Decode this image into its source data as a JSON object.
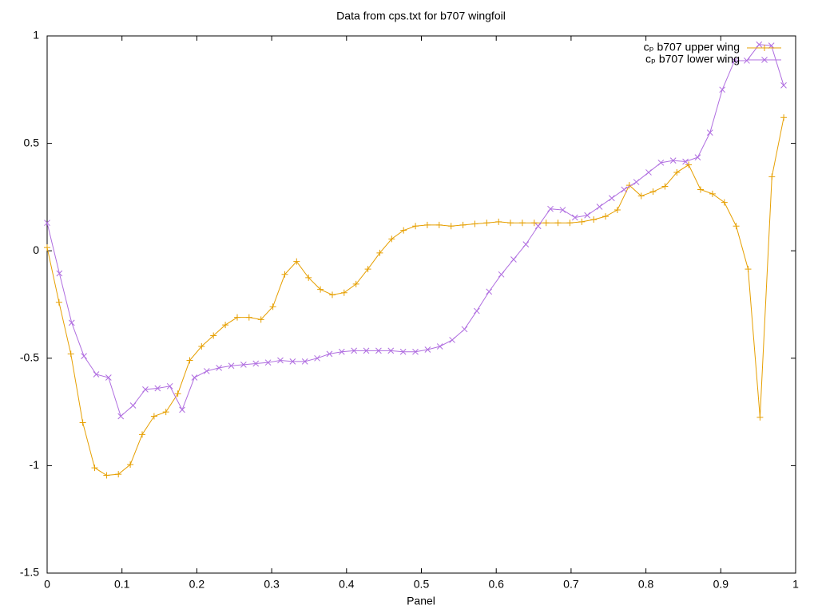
{
  "chart_data": {
    "type": "line",
    "title": "Data from cps.txt for b707 wingfoil",
    "x_label": "Panel",
    "xlim": [
      0,
      1
    ],
    "ylim": [
      -1.5,
      1
    ],
    "xticks": [
      0,
      0.1,
      0.2,
      0.3,
      0.4,
      0.5,
      0.6,
      0.7,
      0.8,
      0.9,
      1
    ],
    "yticks": [
      -1.5,
      -1,
      -0.5,
      0,
      0.5,
      1
    ],
    "legend": "top-right",
    "series": [
      {
        "name": "cₚ b707 upper wing",
        "color": "#e69f00",
        "marker": "plus",
        "x": [
          0,
          0.0159,
          0.0317,
          0.0476,
          0.0635,
          0.0794,
          0.0952,
          0.1111,
          0.127,
          0.1429,
          0.1587,
          0.1746,
          0.1905,
          0.2063,
          0.2222,
          0.2381,
          0.254,
          0.2698,
          0.2857,
          0.3016,
          0.3175,
          0.3333,
          0.3492,
          0.3651,
          0.381,
          0.3968,
          0.4127,
          0.4286,
          0.4444,
          0.4603,
          0.4762,
          0.4921,
          0.5079,
          0.5238,
          0.5397,
          0.5556,
          0.5714,
          0.5873,
          0.6032,
          0.619,
          0.6349,
          0.6508,
          0.6667,
          0.6825,
          0.6984,
          0.7143,
          0.7302,
          0.746,
          0.7619,
          0.7778,
          0.7937,
          0.8095,
          0.8254,
          0.8413,
          0.8571,
          0.873,
          0.8889,
          0.9048,
          0.9206,
          0.9365,
          0.9524,
          0.9683,
          0.9841
        ],
        "values": [
          0.015,
          -0.24,
          -0.48,
          -0.8,
          -1.01,
          -1.045,
          -1.04,
          -0.995,
          -0.855,
          -0.77,
          -0.75,
          -0.665,
          -0.51,
          -0.445,
          -0.395,
          -0.345,
          -0.31,
          -0.31,
          -0.32,
          -0.26,
          -0.11,
          -0.05,
          -0.125,
          -0.18,
          -0.205,
          -0.195,
          -0.155,
          -0.085,
          -0.01,
          0.055,
          0.095,
          0.115,
          0.12,
          0.12,
          0.115,
          0.12,
          0.125,
          0.13,
          0.135,
          0.13,
          0.13,
          0.13,
          0.13,
          0.13,
          0.13,
          0.135,
          0.145,
          0.16,
          0.19,
          0.305,
          0.255,
          0.275,
          0.3,
          0.365,
          0.4,
          0.285,
          0.265,
          0.225,
          0.115,
          -0.085,
          -0.775,
          0.345,
          0.62
        ]
      },
      {
        "name": "cₚ b707 lower wing",
        "color": "#b06ee0",
        "marker": "cross",
        "x": [
          0,
          0.0164,
          0.0328,
          0.0492,
          0.0656,
          0.082,
          0.0984,
          0.1148,
          0.1312,
          0.1476,
          0.164,
          0.1804,
          0.1968,
          0.2132,
          0.2296,
          0.246,
          0.2624,
          0.2788,
          0.2952,
          0.3116,
          0.328,
          0.3444,
          0.3608,
          0.3772,
          0.3936,
          0.41,
          0.4264,
          0.4428,
          0.4592,
          0.4756,
          0.492,
          0.5084,
          0.5248,
          0.5412,
          0.5576,
          0.574,
          0.5904,
          0.6068,
          0.6232,
          0.6396,
          0.656,
          0.6724,
          0.6888,
          0.7052,
          0.7216,
          0.738,
          0.7544,
          0.7708,
          0.7872,
          0.8036,
          0.82,
          0.8364,
          0.8528,
          0.8692,
          0.8856,
          0.902,
          0.9184,
          0.9348,
          0.9512,
          0.9676,
          0.984
        ],
        "values": [
          0.13,
          -0.105,
          -0.335,
          -0.49,
          -0.575,
          -0.59,
          -0.77,
          -0.72,
          -0.645,
          -0.64,
          -0.63,
          -0.74,
          -0.59,
          -0.56,
          -0.545,
          -0.535,
          -0.53,
          -0.525,
          -0.52,
          -0.51,
          -0.515,
          -0.515,
          -0.5,
          -0.48,
          -0.47,
          -0.465,
          -0.465,
          -0.465,
          -0.465,
          -0.47,
          -0.47,
          -0.46,
          -0.445,
          -0.415,
          -0.365,
          -0.28,
          -0.19,
          -0.11,
          -0.04,
          0.03,
          0.115,
          0.195,
          0.19,
          0.155,
          0.165,
          0.205,
          0.245,
          0.285,
          0.32,
          0.365,
          0.41,
          0.42,
          0.415,
          0.435,
          0.55,
          0.75,
          0.885,
          0.885,
          0.96,
          0.955,
          0.77
        ]
      }
    ]
  }
}
